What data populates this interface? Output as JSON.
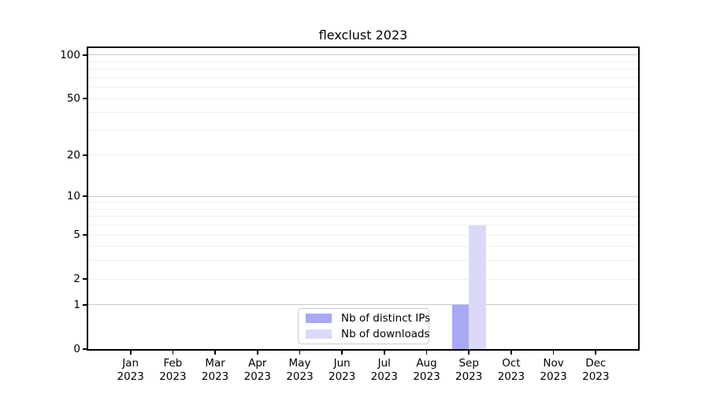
{
  "chart_data": {
    "type": "bar",
    "title": "flexclust 2023",
    "categories": [
      "Jan",
      "Feb",
      "Mar",
      "Apr",
      "May",
      "Jun",
      "Jul",
      "Aug",
      "Sep",
      "Oct",
      "Nov",
      "Dec"
    ],
    "year_label": "2023",
    "series": [
      {
        "name": "Nb of distinct IPs",
        "color": "#a8a8f6",
        "values": [
          0,
          0,
          0,
          0,
          0,
          0,
          0,
          0,
          1,
          0,
          0,
          0
        ]
      },
      {
        "name": "Nb of downloads",
        "color": "#dadaf8",
        "values": [
          0,
          0,
          0,
          0,
          0,
          0,
          0,
          0,
          6,
          0,
          0,
          0
        ]
      }
    ],
    "y_axis": {
      "scale": "log1p",
      "tick_labels": [
        0,
        1,
        2,
        5,
        10,
        20,
        50,
        100
      ],
      "major_gridlines": [
        1,
        10,
        100
      ],
      "minor_gridlines": [
        2,
        3,
        4,
        5,
        6,
        7,
        8,
        9,
        20,
        30,
        40,
        50,
        60,
        70,
        80,
        90
      ],
      "range": [
        0,
        112
      ],
      "grid": true
    },
    "x_axis": {
      "tick_count": 12
    },
    "legend": {
      "position": "lower center"
    },
    "colors": {
      "grid_major": "#c9c9c9",
      "grid_minor": "#efefef",
      "axis": "#000000",
      "background": "#ffffff",
      "text": "#000000"
    }
  }
}
